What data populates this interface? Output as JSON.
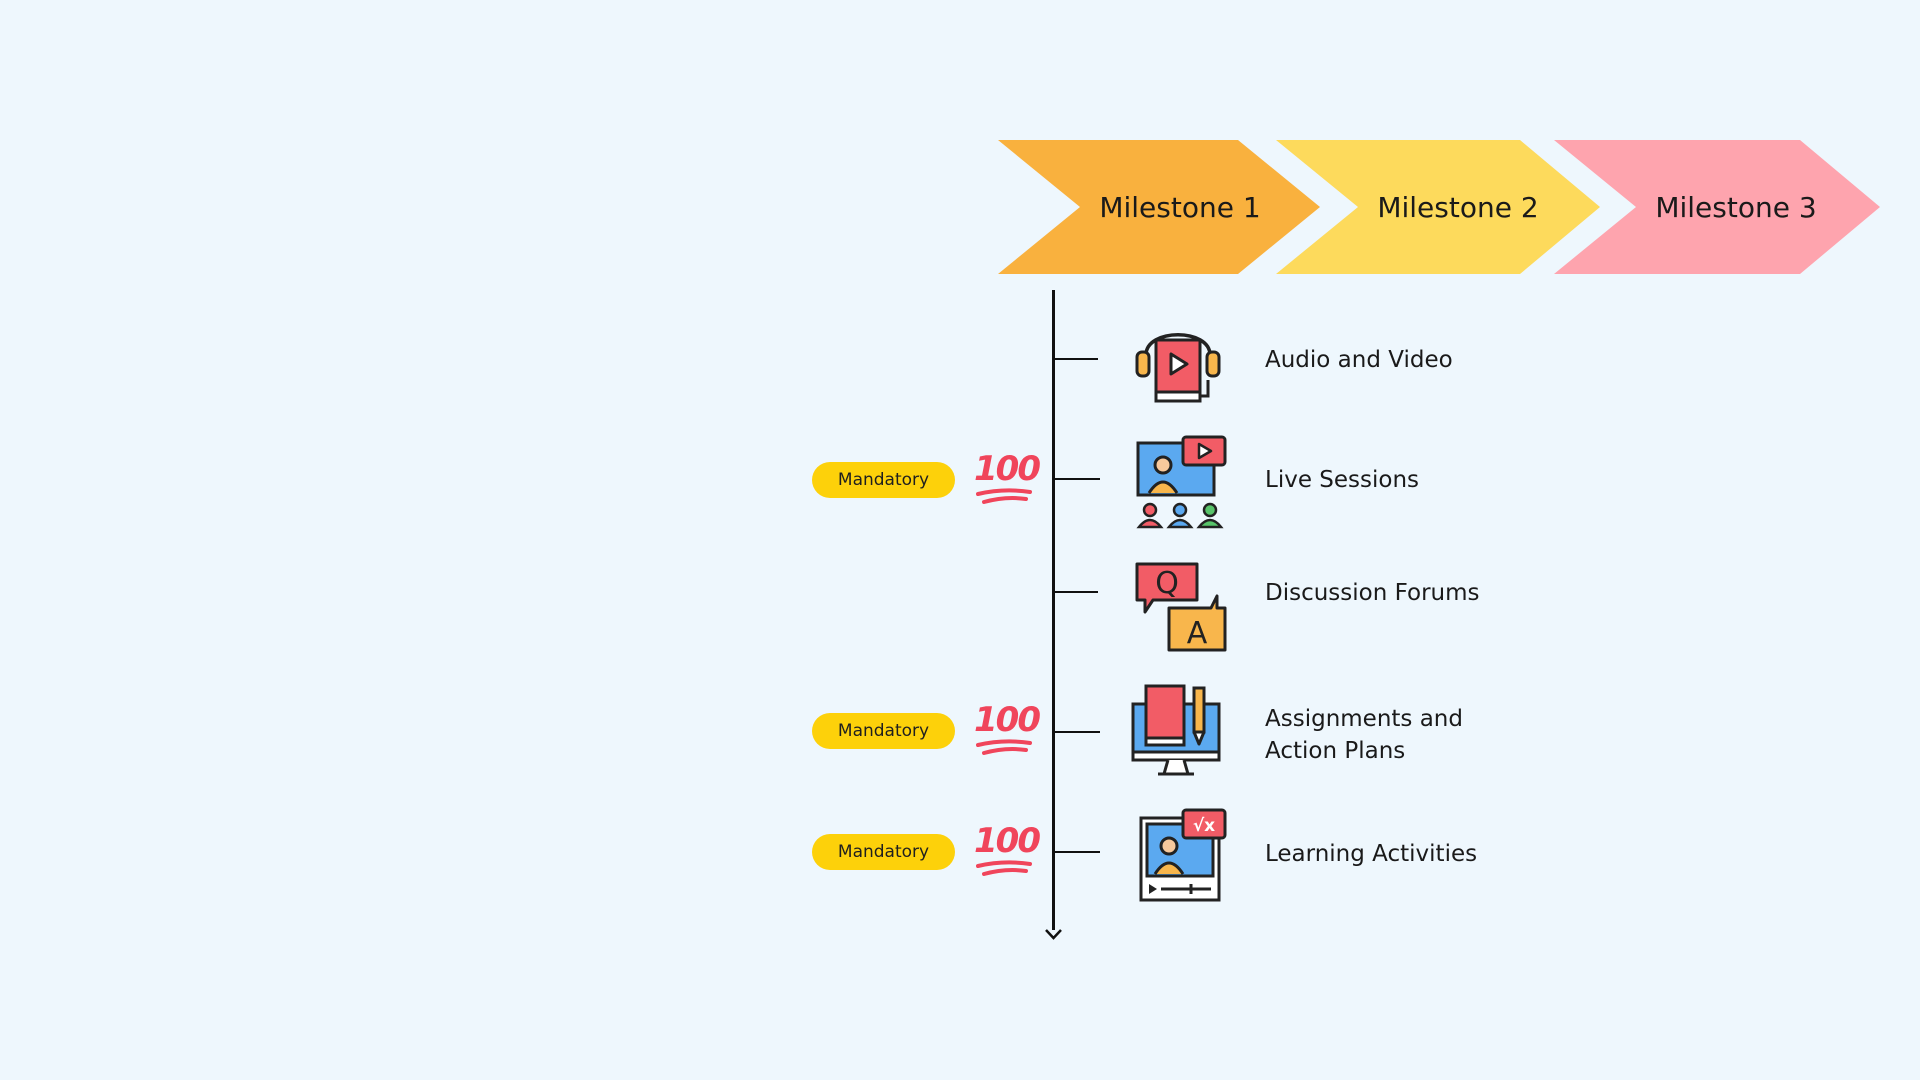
{
  "milestones": [
    {
      "label": "Milestone 1",
      "color": "#f9b13e"
    },
    {
      "label": "Milestone 2",
      "color": "#fdda5c"
    },
    {
      "label": "Milestone 3",
      "color": "#fea4ae"
    }
  ],
  "items": [
    {
      "label": "Audio and Video",
      "icon": "headphones-video-book-icon",
      "mandatory": false
    },
    {
      "label": "Live Sessions",
      "icon": "live-session-screen-icon",
      "mandatory": true
    },
    {
      "label": "Discussion Forums",
      "icon": "question-answer-bubbles-icon",
      "mandatory": false
    },
    {
      "label_lines": [
        "Assignments and",
        "Action Plans"
      ],
      "icon": "computer-book-pencil-icon",
      "mandatory": true
    },
    {
      "label": "Learning Activities",
      "icon": "video-lesson-math-icon",
      "mandatory": true
    }
  ],
  "badge_text": "Mandatory",
  "hundred_symbol": "100",
  "colors": {
    "background": "#eef7fd",
    "badge": "#fdd10a",
    "icon_red": "#f25c66",
    "icon_blue": "#5ba9f0",
    "icon_orange": "#f8b64c",
    "hundred_red": "#f0455b"
  }
}
